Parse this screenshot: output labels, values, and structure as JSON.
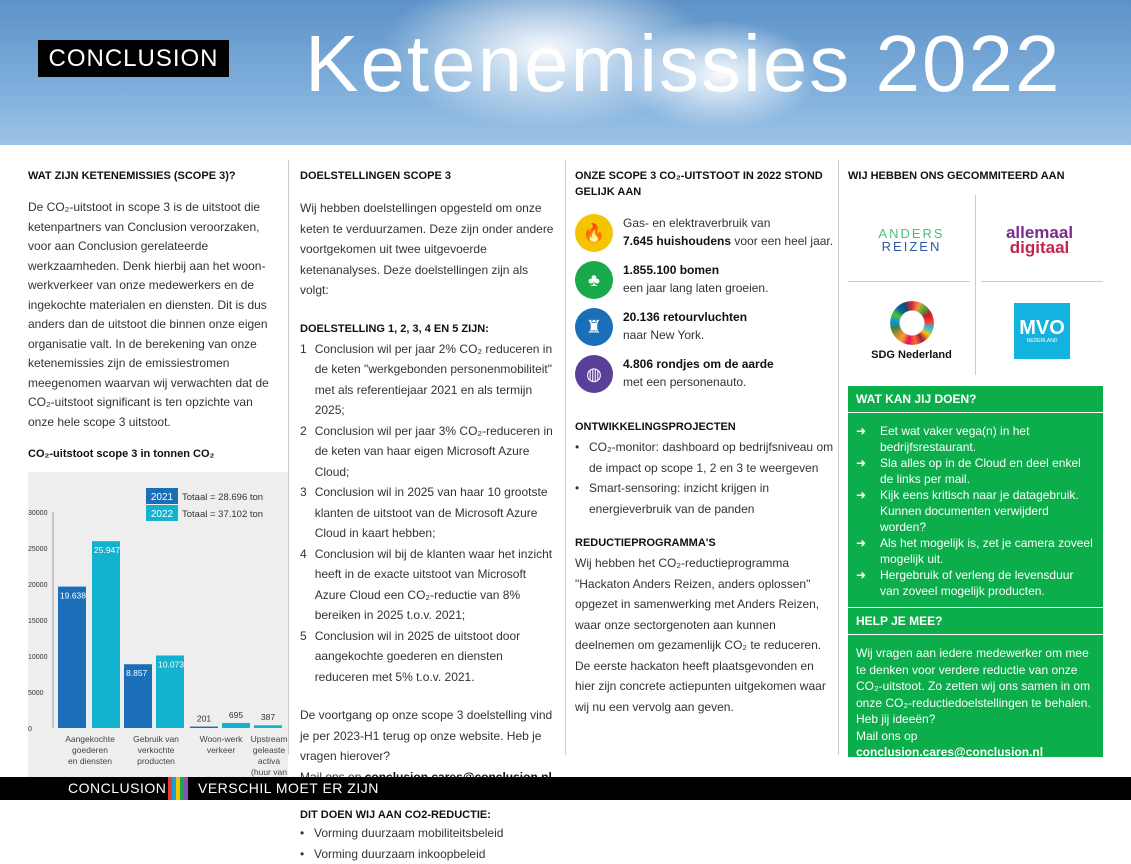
{
  "header": {
    "brand": "CONCLUSION",
    "title": "Ketenemissies 2022"
  },
  "col1": {
    "heading": "WAT ZIJN KETENEMISSIES (SCOPE 3)?",
    "text": "De CO₂-uitstoot in scope 3 is de uitstoot die ketenpartners van Conclusion veroorzaken, voor aan Conclusion gerelateerde werkzaamheden. Denk hierbij aan het woon-werkverkeer van onze medewerkers en de ingekochte materialen en diensten. Dit is dus anders dan de uitstoot die binnen onze eigen organisatie valt. In de berekening van onze ketenemissies zijn de emissiestromen meegenomen waarvan wij verwachten dat de CO₂-uitstoot significant is ten opzichte van onze hele scope 3 uitstoot."
  },
  "chart_data": {
    "type": "bar",
    "title": "CO₂-uitstoot scope 3 in tonnen CO₂",
    "categories": [
      "Aangekochte goederen en diensten",
      "Gebruik van verkochte producten",
      "Woon-werk verkeer",
      "Upstream geleaste activa (huur van vastgoed)"
    ],
    "series": [
      {
        "name": "2021",
        "color": "#1a6fb8",
        "values": [
          19638,
          8857,
          201,
          null
        ],
        "labels": [
          "19.638",
          "8.857",
          "201",
          ""
        ],
        "total": "Totaal = 28.696  ton"
      },
      {
        "name": "2022",
        "color": "#13b3cf",
        "values": [
          25947,
          10073,
          695,
          387
        ],
        "labels": [
          "25.947",
          "10.073",
          "695",
          "387"
        ],
        "total": "Totaal = 37.102 ton"
      }
    ],
    "ylim": [
      0,
      30000
    ],
    "yticks": [
      "0",
      "5000",
      "10000",
      "15000",
      "20000",
      "25000",
      "30000"
    ],
    "legend": "top-right",
    "grid": false
  },
  "col2": {
    "heading": "DOELSTELLINGEN SCOPE 3",
    "intro": "Wij hebben doelstellingen opgesteld om onze keten te verduurzamen. Deze zijn onder andere voortgekomen uit twee uitgevoerde ketenanalyses. Deze doelstellingen zijn als volgt:",
    "sub": "DOELSTELLING 1, 2, 3, 4 EN 5 ZIJN:",
    "goals": [
      {
        "n": "1",
        "t": "Conclusion wil per jaar 2% CO₂ reduceren in de keten \"werkgebonden personenmobiliteit\" met als referentiejaar 2021 en als termijn 2025;"
      },
      {
        "n": "2",
        "t": "Conclusion wil per jaar 3% CO₂-reduceren in de keten van haar eigen Microsoft Azure Cloud;"
      },
      {
        "n": "3",
        "t": "Conclusion wil in 2025 van haar 10 grootste klanten de uitstoot van de Microsoft Azure Cloud in kaart hebben;"
      },
      {
        "n": "4",
        "t": "Conclusion wil bij de klanten waar het inzicht heeft in de exacte uitstoot van Microsoft Azure Cloud een CO₂-reductie van 8% bereiken in 2025 t.o.v. 2021;"
      },
      {
        "n": "5",
        "t": "Conclusion wil in 2025 de uitstoot door aangekochte goederen en diensten reduceren met 5% t.o.v. 2021."
      }
    ],
    "progress": "De voortgang op onze scope 3 doelstelling vind je per 2023-H1 terug op onze website. Heb je vragen hierover?",
    "mail_pre": "Mail ons op ",
    "mail": "conclusion.cares@conclusion.nl.",
    "sub2": "DIT DOEN WIJ AAN CO2-REDUCTIE:",
    "actions": [
      "Vorming duurzaam mobiliteitsbeleid",
      "Vorming duurzaam inkoopbeleid"
    ]
  },
  "col3": {
    "heading": "ONZE SCOPE 3 CO₂-UITSTOOT IN 2022 STOND GELIJK AAN",
    "equivalents": [
      {
        "icon": "fire-icon",
        "color": "#f5c400",
        "pre": "Gas- en elektraverbruik van",
        "bold": "7.645 huishoudens",
        "post": " voor een heel jaar."
      },
      {
        "icon": "tree-icon",
        "color": "#19a84a",
        "pre": "",
        "bold": "1.855.100 bomen",
        "post": "een jaar lang laten groeien."
      },
      {
        "icon": "statue-of-liberty-icon",
        "color": "#1a6fb8",
        "pre": "",
        "bold": "20.136 retourvluchten",
        "post": "naar New York."
      },
      {
        "icon": "globe-icon",
        "color": "#5a3f99",
        "pre": "",
        "bold": "4.806 rondjes om de aarde",
        "post": "met een personenauto."
      }
    ],
    "proj_heading": "ONTWIKKELINGSPROJECTEN",
    "projects": [
      "CO₂-monitor: dashboard op bedrijfsniveau om de impact op scope 1, 2 en 3 te weergeven",
      "Smart-sensoring: inzicht krijgen in energieverbruik van de panden"
    ],
    "red_heading": "REDUCTIEPROGRAMMA'S",
    "red_text": "Wij hebben het CO₂-reductieprogramma \"Hackaton Anders Reizen, anders oplossen\" opgezet in samenwerking met Anders Reizen, waar onze sectorgenoten aan kunnen deelnemen om gezamenlijk CO₂ te reduceren. De eerste hackaton heeft plaatsgevonden en hier zijn concrete actiepunten uitgekomen waar wij nu een vervolg aan geven."
  },
  "col4": {
    "heading": "WIJ HEBBEN ONS GECOMMITEERD AAN",
    "logos": {
      "anders1": "ANDERS",
      "anders2": "REIZEN",
      "allemaal1": "allemaal",
      "allemaal2": "digitaal",
      "sdg": "SDG Nederland",
      "mvo": "MVO",
      "mvo_sub": "NEDERLAND"
    },
    "wat_heading": "WAT KAN JIJ DOEN?",
    "tips": [
      "Eet wat vaker vega(n) in het bedrijfsrestaurant.",
      "Sla alles op in de Cloud en deel enkel de links per mail.",
      "Kijk eens kritisch naar je datagebruik. Kunnen documenten verwijderd worden?",
      "Als het mogelijk is, zet je camera zoveel mogelijk uit.",
      "Hergebruik of verleng de levensduur van zoveel mogelijk producten."
    ],
    "help_heading": "HELP JE MEE?",
    "help_text": "Wij vragen aan iedere medewerker om mee te denken voor verdere reductie van onze CO₂-uitstoot. Zo zetten wij ons samen in om onze CO₂-reductiedoelstellingen te behalen. Heb jij ideeën?",
    "mail_pre": "Mail ons op ",
    "mail": "conclusion.cares@conclusion.nl"
  },
  "footer": {
    "brand": "CONCLUSION",
    "slogan": "VERSCHIL MOET ER ZIJN",
    "stripe_colors": [
      "#e63b3b",
      "#19a0d8",
      "#f5c400",
      "#19a84a",
      "#8a4fb5"
    ]
  },
  "accent": "#0bae4a"
}
